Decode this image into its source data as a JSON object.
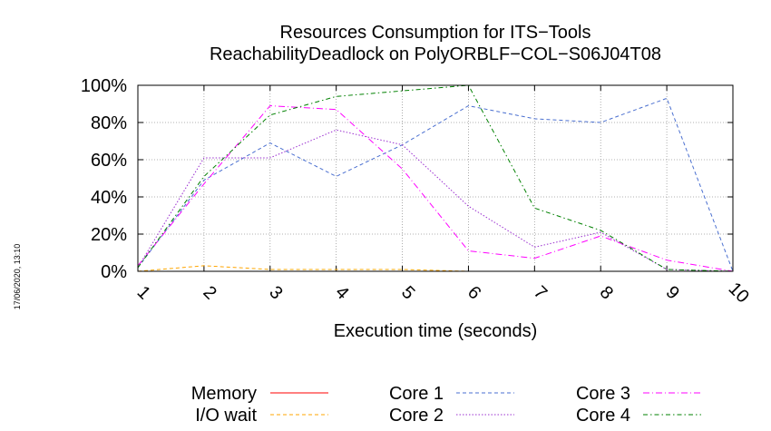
{
  "chart_data": {
    "type": "line",
    "title_line1": "Resources Consumption for ITS−Tools",
    "title_line2": "ReachabilityDeadlock on PolyORBLF−COL−S06J04T08",
    "xlabel": "Execution time (seconds)",
    "ylabel": "",
    "side_label": "17/06/2020, 13:10",
    "x": [
      1,
      2,
      3,
      4,
      5,
      6,
      7,
      8,
      9,
      10
    ],
    "x_tick_labels": [
      "1",
      "2",
      "3",
      "4",
      "5",
      "6",
      "7",
      "8",
      "9",
      "10"
    ],
    "y_ticks": [
      0,
      20,
      40,
      60,
      80,
      100
    ],
    "y_tick_labels": [
      "0%",
      "20%",
      "40%",
      "60%",
      "80%",
      "100%"
    ],
    "xlim": [
      1,
      10
    ],
    "ylim": [
      0,
      100
    ],
    "grid": true,
    "legend_position": "bottom",
    "series": [
      {
        "name": "Memory",
        "color": "#ff0000",
        "dash": "solid",
        "values": [
          0,
          0,
          0,
          0,
          0,
          0,
          0,
          0,
          0,
          0
        ]
      },
      {
        "name": "I/O wait",
        "color": "#ffa500",
        "dash": "dashed",
        "values": [
          0,
          3,
          1,
          1,
          1,
          0,
          0,
          0,
          0,
          0
        ]
      },
      {
        "name": "Core 1",
        "color": "#4a6fd0",
        "dash": "dashed",
        "values": [
          2,
          49,
          69,
          51,
          68,
          89,
          82,
          80,
          93,
          0
        ]
      },
      {
        "name": "Core 2",
        "color": "#9b30d0",
        "dash": "dotted",
        "values": [
          2,
          61,
          61,
          76,
          68,
          35,
          13,
          21,
          1,
          0
        ]
      },
      {
        "name": "Core 3",
        "color": "#ff00ff",
        "dash": "dashdot",
        "values": [
          3,
          47,
          89,
          87,
          55,
          11,
          7,
          19,
          6,
          0
        ]
      },
      {
        "name": "Core 4",
        "color": "#008000",
        "dash": "dashdot2",
        "values": [
          2,
          51,
          84,
          94,
          97,
          100,
          34,
          22,
          1,
          0
        ]
      }
    ]
  }
}
